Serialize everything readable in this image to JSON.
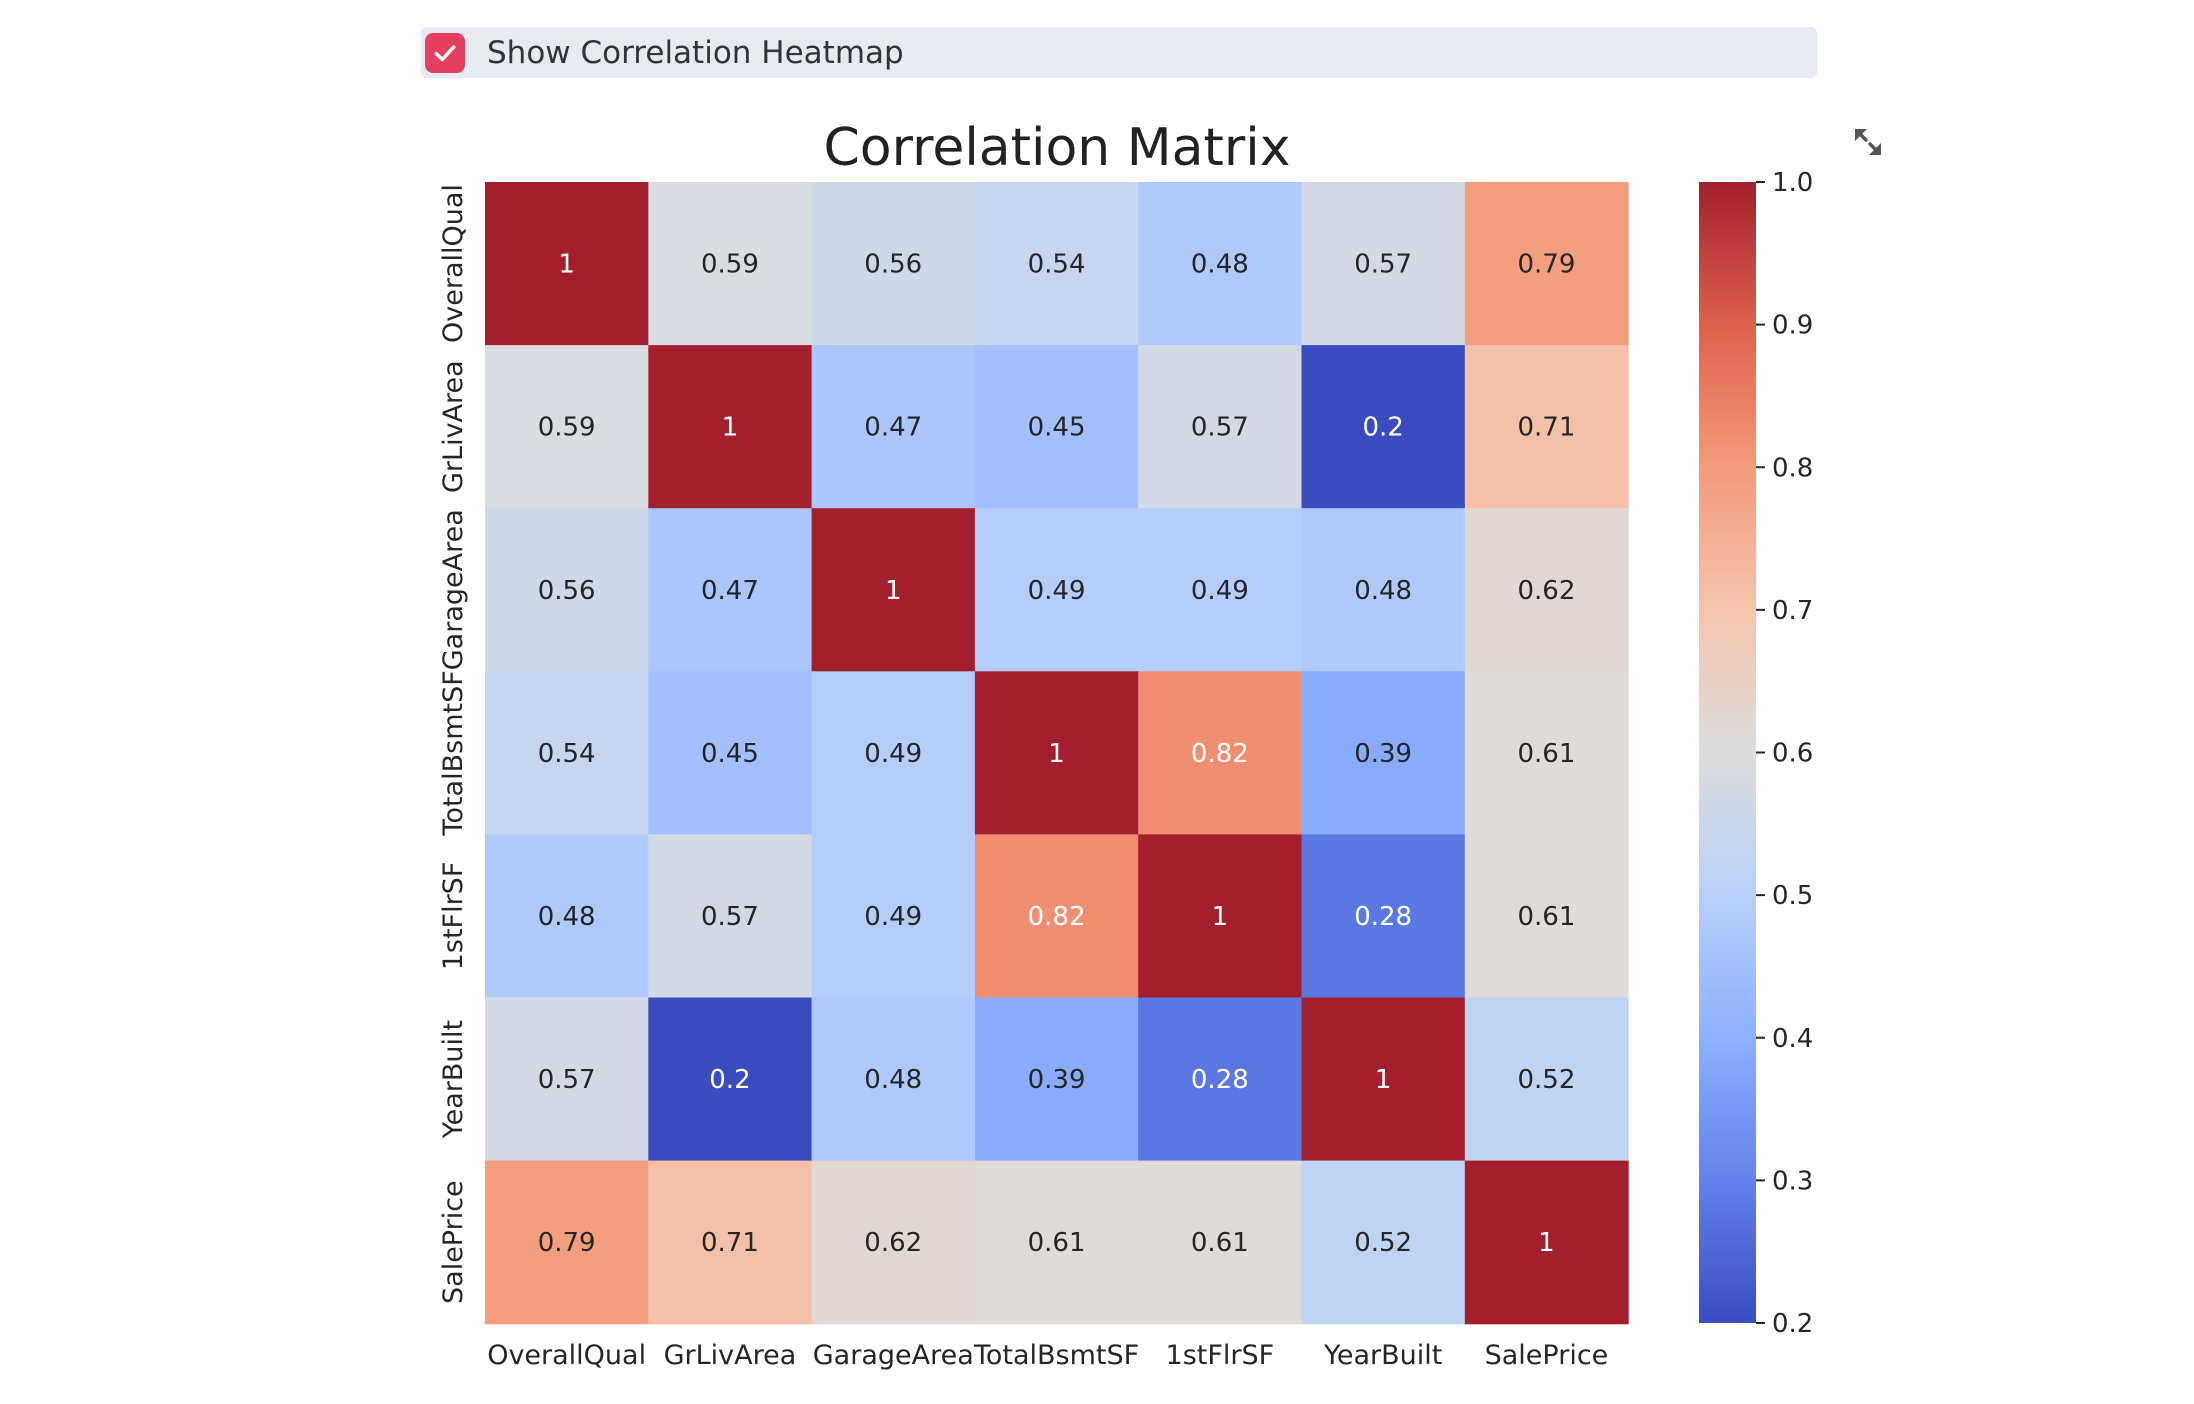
{
  "toggle": {
    "label": "Show Correlation Heatmap",
    "checked": true
  },
  "colors": {
    "accent": "#e64060",
    "checkbox_bar_bg": "#e8eaf2",
    "text": "#31333f"
  },
  "icons": {
    "checkbox": "checkmark-icon",
    "expand": "fullscreen-expand-icon"
  },
  "chart_data": {
    "type": "heatmap",
    "title": "Correlation Matrix",
    "colormap": "coolwarm",
    "variables": [
      "OverallQual",
      "GrLivArea",
      "GarageArea",
      "TotalBsmtSF",
      "1stFlrSF",
      "YearBuilt",
      "SalePrice"
    ],
    "matrix": [
      [
        1,
        0.59,
        0.56,
        0.54,
        0.48,
        0.57,
        0.79
      ],
      [
        0.59,
        1,
        0.47,
        0.45,
        0.57,
        0.2,
        0.71
      ],
      [
        0.56,
        0.47,
        1,
        0.49,
        0.49,
        0.48,
        0.62
      ],
      [
        0.54,
        0.45,
        0.49,
        1,
        0.82,
        0.39,
        0.61
      ],
      [
        0.48,
        0.57,
        0.49,
        0.82,
        1,
        0.28,
        0.61
      ],
      [
        0.57,
        0.2,
        0.48,
        0.39,
        0.28,
        1,
        0.52
      ],
      [
        0.79,
        0.71,
        0.62,
        0.61,
        0.61,
        0.52,
        1
      ]
    ],
    "colorbar": {
      "range": [
        0.2,
        1.0
      ],
      "ticks": [
        "0.2",
        "0.3",
        "0.4",
        "0.5",
        "0.6",
        "0.7",
        "0.8",
        "0.9",
        "1.0"
      ]
    }
  }
}
